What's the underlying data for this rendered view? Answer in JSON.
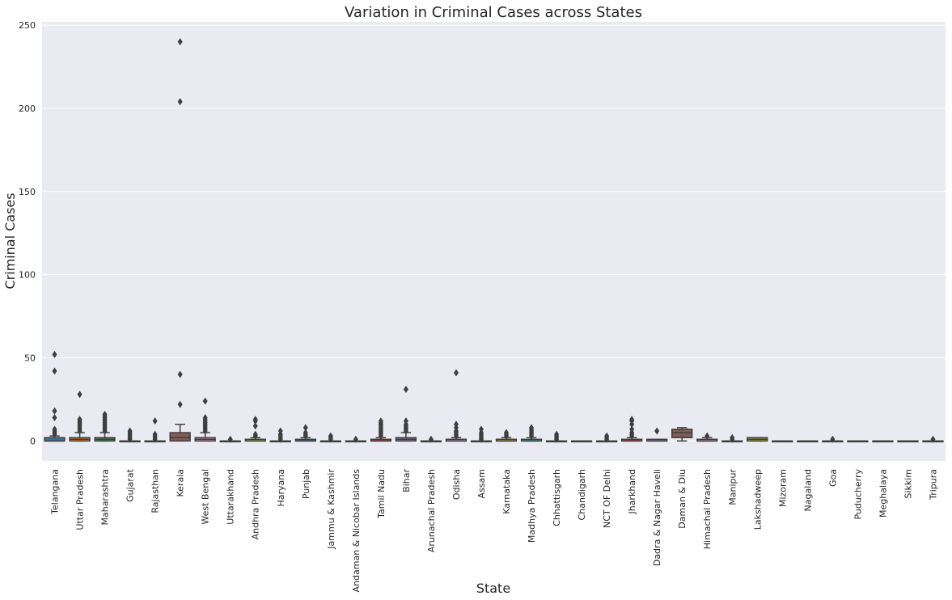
{
  "chart_data": {
    "type": "box",
    "title": "Variation in Criminal Cases across States",
    "xlabel": "State",
    "ylabel": "Criminal Cases",
    "ylim": [
      -12,
      252
    ],
    "yticks": [
      0,
      50,
      100,
      150,
      200,
      250
    ],
    "grid": true,
    "categories": [
      "Telangana",
      "Uttar Pradesh",
      "Maharashtra",
      "Gujarat",
      "Rajasthan",
      "Kerala",
      "West Bengal",
      "Uttarakhand",
      "Andhra Pradesh",
      "Haryana",
      "Punjab",
      "Jammu & Kashmir",
      "Andaman & Nicobar Islands",
      "Tamil Nadu",
      "Bihar",
      "Arunachal Pradesh",
      "Odisha",
      "Assam",
      "Karnataka",
      "Madhya Pradesh",
      "Chhattisgarh",
      "Chandigarh",
      "NCT OF Delhi",
      "Jharkhand",
      "Dadra & Nagar Haveli",
      "Daman & Diu",
      "Himachal Pradesh",
      "Manipur",
      "Lakshadweep",
      "Mizoram",
      "Nagaland",
      "Goa",
      "Puducherry",
      "Meghalaya",
      "Sikkim",
      "Tripura"
    ],
    "colors": [
      "#3274a1",
      "#e1812c",
      "#3a923a",
      "#c03d3e",
      "#9372b2",
      "#845b53",
      "#d684bd",
      "#7f7f7f",
      "#a9aa35",
      "#2ea1b2",
      "#3274a1",
      "#e1812c",
      "#3a923a",
      "#c03d3e",
      "#9372b2",
      "#845b53",
      "#d684bd",
      "#7f7f7f",
      "#a9aa35",
      "#2ea1b2",
      "#3274a1",
      "#e1812c",
      "#3a923a",
      "#c03d3e",
      "#9372b2",
      "#845b53",
      "#d684bd",
      "#7f7f7f",
      "#a9aa35",
      "#2ea1b2",
      "#3274a1",
      "#e1812c",
      "#3a923a",
      "#c03d3e",
      "#9372b2",
      "#845b53"
    ],
    "boxes": [
      {
        "q1": 0,
        "median": 0,
        "q3": 2,
        "wlow": 0,
        "whigh": 3,
        "outliers": [
          4,
          5,
          6,
          7,
          14,
          18,
          42,
          52
        ]
      },
      {
        "q1": 0,
        "median": 1,
        "q3": 2,
        "wlow": 0,
        "whigh": 5,
        "outliers": [
          6,
          7,
          8,
          9,
          10,
          11,
          12,
          13,
          28
        ]
      },
      {
        "q1": 0,
        "median": 1,
        "q3": 2,
        "wlow": 0,
        "whigh": 5,
        "outliers": [
          6,
          7,
          8,
          9,
          10,
          11,
          12,
          13,
          14,
          15,
          16
        ]
      },
      {
        "q1": 0,
        "median": 0,
        "q3": 0,
        "wlow": 0,
        "whigh": 0,
        "outliers": [
          1,
          2,
          3,
          4,
          5,
          6
        ]
      },
      {
        "q1": 0,
        "median": 0,
        "q3": 0,
        "wlow": 0,
        "whigh": 0,
        "outliers": [
          1,
          2,
          3,
          4,
          12
        ]
      },
      {
        "q1": 0,
        "median": 2,
        "q3": 5,
        "wlow": 0,
        "whigh": 10,
        "outliers": [
          22,
          40,
          204,
          240
        ]
      },
      {
        "q1": 0,
        "median": 1,
        "q3": 2,
        "wlow": 0,
        "whigh": 5,
        "outliers": [
          6,
          7,
          8,
          9,
          10,
          11,
          12,
          13,
          14,
          24
        ]
      },
      {
        "q1": 0,
        "median": 0,
        "q3": 0,
        "wlow": 0,
        "whigh": 0,
        "outliers": [
          1
        ]
      },
      {
        "q1": 0,
        "median": 0,
        "q3": 1,
        "wlow": 0,
        "whigh": 2,
        "outliers": [
          3,
          4,
          9,
          12,
          13
        ]
      },
      {
        "q1": 0,
        "median": 0,
        "q3": 0,
        "wlow": 0,
        "whigh": 0,
        "outliers": [
          1,
          2,
          3,
          4,
          6
        ]
      },
      {
        "q1": 0,
        "median": 0,
        "q3": 1,
        "wlow": 0,
        "whigh": 2,
        "outliers": [
          3,
          4,
          5,
          8
        ]
      },
      {
        "q1": 0,
        "median": 0,
        "q3": 0,
        "wlow": 0,
        "whigh": 0,
        "outliers": [
          1,
          2,
          3
        ]
      },
      {
        "q1": 0,
        "median": 0,
        "q3": 0,
        "wlow": 0,
        "whigh": 0,
        "outliers": [
          1
        ]
      },
      {
        "q1": 0,
        "median": 0,
        "q3": 1,
        "wlow": 0,
        "whigh": 2,
        "outliers": [
          3,
          4,
          5,
          6,
          7,
          8,
          9,
          10,
          11,
          12
        ]
      },
      {
        "q1": 0,
        "median": 1,
        "q3": 2,
        "wlow": 0,
        "whigh": 5,
        "outliers": [
          6,
          7,
          8,
          9,
          10,
          12,
          31
        ]
      },
      {
        "q1": 0,
        "median": 0,
        "q3": 0,
        "wlow": 0,
        "whigh": 0,
        "outliers": [
          1
        ]
      },
      {
        "q1": 0,
        "median": 0,
        "q3": 1,
        "wlow": 0,
        "whigh": 2,
        "outliers": [
          3,
          4,
          5,
          6,
          8,
          10,
          41
        ]
      },
      {
        "q1": 0,
        "median": 0,
        "q3": 0,
        "wlow": 0,
        "whigh": 0,
        "outliers": [
          1,
          2,
          3,
          4,
          5,
          7
        ]
      },
      {
        "q1": 0,
        "median": 0,
        "q3": 1,
        "wlow": 0,
        "whigh": 2,
        "outliers": [
          3,
          4,
          5
        ]
      },
      {
        "q1": 0,
        "median": 0,
        "q3": 1,
        "wlow": 0,
        "whigh": 2,
        "outliers": [
          3,
          4,
          5,
          6,
          7,
          8
        ]
      },
      {
        "q1": 0,
        "median": 0,
        "q3": 0,
        "wlow": 0,
        "whigh": 0,
        "outliers": [
          1,
          2,
          3,
          4
        ]
      },
      {
        "q1": 0,
        "median": 0,
        "q3": 0,
        "wlow": 0,
        "whigh": 0,
        "outliers": []
      },
      {
        "q1": 0,
        "median": 0,
        "q3": 0,
        "wlow": 0,
        "whigh": 0,
        "outliers": [
          1,
          2,
          3
        ]
      },
      {
        "q1": 0,
        "median": 0,
        "q3": 1,
        "wlow": 0,
        "whigh": 2,
        "outliers": [
          3,
          4,
          5,
          7,
          10,
          12,
          13
        ]
      },
      {
        "q1": 0,
        "median": 0,
        "q3": 1,
        "wlow": 0,
        "whigh": 1,
        "outliers": [
          6
        ]
      },
      {
        "q1": 2,
        "median": 5,
        "q3": 7,
        "wlow": 0,
        "whigh": 8,
        "outliers": []
      },
      {
        "q1": 0,
        "median": 0,
        "q3": 1,
        "wlow": 0,
        "whigh": 2,
        "outliers": [
          3
        ]
      },
      {
        "q1": 0,
        "median": 0,
        "q3": 0,
        "wlow": 0,
        "whigh": 0,
        "outliers": [
          1,
          2
        ]
      },
      {
        "q1": 0,
        "median": 1,
        "q3": 2,
        "wlow": 0,
        "whigh": 2,
        "outliers": []
      },
      {
        "q1": 0,
        "median": 0,
        "q3": 0,
        "wlow": 0,
        "whigh": 0,
        "outliers": []
      },
      {
        "q1": 0,
        "median": 0,
        "q3": 0,
        "wlow": 0,
        "whigh": 0,
        "outliers": []
      },
      {
        "q1": 0,
        "median": 0,
        "q3": 0,
        "wlow": 0,
        "whigh": 0,
        "outliers": [
          1
        ]
      },
      {
        "q1": 0,
        "median": 0,
        "q3": 0,
        "wlow": 0,
        "whigh": 0,
        "outliers": []
      },
      {
        "q1": 0,
        "median": 0,
        "q3": 0,
        "wlow": 0,
        "whigh": 0,
        "outliers": []
      },
      {
        "q1": 0,
        "median": 0,
        "q3": 0,
        "wlow": 0,
        "whigh": 0,
        "outliers": []
      },
      {
        "q1": 0,
        "median": 0,
        "q3": 0,
        "wlow": 0,
        "whigh": 0,
        "outliers": [
          1
        ]
      }
    ]
  }
}
